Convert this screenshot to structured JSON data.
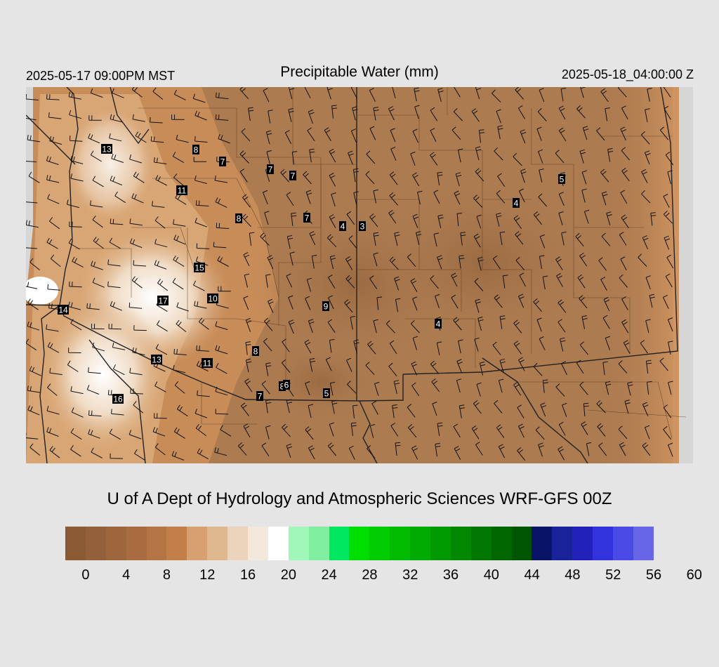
{
  "header": {
    "left_time": "2025-05-17 09:00PM MST",
    "title": "Precipitable Water (mm)",
    "right_time": "2025-05-18_04:00:00 Z"
  },
  "credit": "U of A Dept of Hydrology and Atmospheric Sciences WRF-GFS 00Z",
  "colorbar": {
    "colors": [
      "#8a5a34",
      "#94603a",
      "#9e663c",
      "#a86c40",
      "#b47444",
      "#c47e48",
      "#d8a070",
      "#e0b890",
      "#ecd4bc",
      "#f4e8dc",
      "#ffffff",
      "#a0f8b8",
      "#80f0a0",
      "#00e860",
      "#00dd00",
      "#00cc00",
      "#00bb00",
      "#00aa00",
      "#009900",
      "#008800",
      "#007700",
      "#006600",
      "#005500",
      "#0a1466",
      "#1a2299",
      "#2222bb",
      "#3333dd",
      "#4a4ae6",
      "#6666e6"
    ],
    "ticks": [
      "0",
      "4",
      "8",
      "12",
      "16",
      "20",
      "24",
      "28",
      "32",
      "36",
      "40",
      "44",
      "48",
      "52",
      "56",
      "60"
    ]
  },
  "map": {
    "base_color": "#ad7b50",
    "station_values": [
      {
        "label": "13"
      },
      {
        "label": "8"
      },
      {
        "label": "7"
      },
      {
        "label": "7"
      },
      {
        "label": "7"
      },
      {
        "label": "11"
      },
      {
        "label": "8"
      },
      {
        "label": "7"
      },
      {
        "label": "4"
      },
      {
        "label": "3"
      },
      {
        "label": "5"
      },
      {
        "label": "4"
      },
      {
        "label": "15"
      },
      {
        "label": "10"
      },
      {
        "label": "17"
      },
      {
        "label": "14"
      },
      {
        "label": "9"
      },
      {
        "label": "8"
      },
      {
        "label": "4"
      },
      {
        "label": "13"
      },
      {
        "label": "11"
      },
      {
        "label": "8"
      },
      {
        "label": "6"
      },
      {
        "label": "5"
      },
      {
        "label": "7"
      },
      {
        "label": "16"
      }
    ]
  }
}
